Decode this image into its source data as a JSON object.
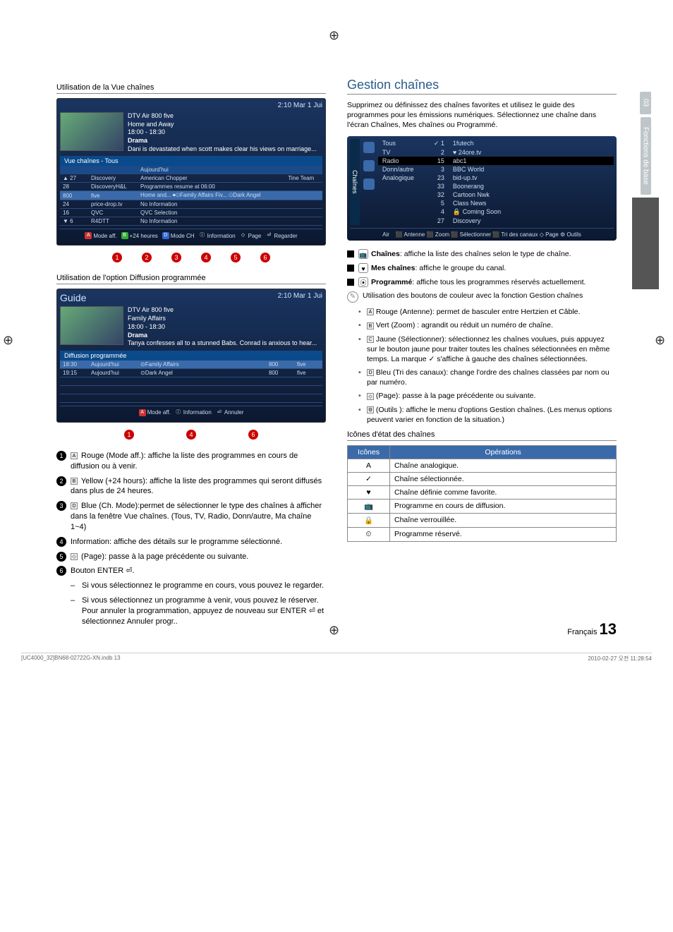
{
  "side": {
    "num": "03",
    "label": "Fonctions de base"
  },
  "left": {
    "head1": "Utilisation de la Vue chaînes",
    "tv1": {
      "time": "2:10 Mar 1 Jui",
      "prog_title": "DTV Air 800 five",
      "prog_sub": "Home and Away",
      "prog_time": "18:00 - 18:30",
      "prog_genre": "Drama",
      "prog_desc": "Dani is devastated when scott makes clear his views on marriage...",
      "tab": "Vue chaînes - Tous",
      "period": "Aujourd'hui",
      "rows": [
        {
          "n": "▲ 27",
          "ch": "Discovery",
          "p1": "American Chopper",
          "p2": "Tine Team"
        },
        {
          "n": "28",
          "ch": "DiscoveryH&L",
          "p1": "Programmes resume at 06:00",
          "p2": ""
        },
        {
          "n": "800",
          "ch": "five",
          "p1": "Home and...   ⏺⊙Family Affairs   Fiv...   ⊙Dark Angel",
          "p2": ""
        },
        {
          "n": "24",
          "ch": "price-drop.tv",
          "p1": "No Information",
          "p2": ""
        },
        {
          "n": "16",
          "ch": "QVC",
          "p1": "QVC Selection",
          "p2": ""
        },
        {
          "n": "▼ 6",
          "ch": "R4DTT",
          "p1": "No Information",
          "p2": ""
        }
      ],
      "legend": [
        "Mode aff.",
        "+24 heures",
        "Mode CH",
        "Information",
        "Page",
        "Regarder"
      ]
    },
    "head2": "Utilisation de l'option Diffusion programmée",
    "tv2": {
      "title": "Guide",
      "time": "2:10 Mar 1 Jui",
      "prog_title": "DTV Air 800 five",
      "prog_sub": "Family Affairs",
      "prog_time": "18:00 - 18:30",
      "prog_genre": "Drama",
      "prog_desc": "Tanya confesses all to a stunned Babs. Conrad is anxious to hear...",
      "tab": "Diffusion programmée",
      "rows": [
        {
          "t": "18:30",
          "d": "Aujourd'hui",
          "p": "⊙Family Affairs",
          "n": "800",
          "c": "five"
        },
        {
          "t": "19:15",
          "d": "Aujourd'hui",
          "p": "⊙Dark Angel",
          "n": "800",
          "c": "five"
        }
      ],
      "legend": [
        "Mode aff.",
        "Information",
        "Annuler"
      ]
    },
    "items": [
      {
        "n": "1",
        "badge": "A",
        "bc": "br",
        "text": "Rouge (Mode aff.): affiche la liste des programmes en cours de diffusion ou à venir."
      },
      {
        "n": "2",
        "badge": "B",
        "bc": "bg",
        "text": "Yellow (+24 hours): affiche la liste des programmes qui seront diffusés dans plus de 24 heures."
      },
      {
        "n": "3",
        "badge": "D",
        "bc": "bb",
        "text": "Blue (Ch. Mode):permet de sélectionner le type des chaînes à afficher dans la fenêtre Vue chaînes. (Tous, TV, Radio, Donn/autre, Ma chaîne 1~4)"
      },
      {
        "n": "4",
        "badge": "",
        "bc": "",
        "text": "Information: affiche des détails sur le programme sélectionné."
      },
      {
        "n": "5",
        "badge": "◇",
        "bc": "",
        "text": "(Page): passe à la page précédente ou suivante."
      },
      {
        "n": "6",
        "badge": "",
        "bc": "",
        "text": "Bouton ENTER ⏎."
      }
    ],
    "subitems": [
      "Si vous sélectionnez le programme en cours, vous pouvez le regarder.",
      "Si vous sélectionnez un programme à venir, vous pouvez le réserver. Pour annuler la programmation, appuyez de nouveau sur ENTER ⏎ et sélectionnez Annuler progr.."
    ]
  },
  "right": {
    "head": "Gestion chaînes",
    "intro": "Supprimez ou définissez des chaînes favorites et utilisez le guide des programmes pour les émissions numériques. Sélectionnez une chaîne dans l'écran Chaînes, Mes chaînes ou Programmé.",
    "chbox": {
      "sidelabel": "Chaînes",
      "col1": [
        "Tous",
        "TV",
        "Radio",
        "Donn/autre",
        "Analogique"
      ],
      "num": [
        "✓ 1",
        "2",
        "15",
        "3",
        "23",
        "33",
        "32",
        "5",
        "4",
        "27"
      ],
      "name": [
        "1futech",
        "♥ 24ore.tv",
        "abc1",
        "BBC World",
        "bid-up.tv",
        "Boonerang",
        "Cartoon Nwk",
        "Class News",
        "🔒 Coming Soon",
        "Discovery"
      ],
      "foot_left": "Air",
      "foot": "⬛ Antenne  ⬛ Zoom  ⬛ Sélectionner  ⬛ Tri des canaux  ◇ Page  ⚙ Outils"
    },
    "bullets": [
      {
        "icon": "📺",
        "text": "Chaînes: affiche la liste des chaînes selon le type de chaîne."
      },
      {
        "icon": "♥",
        "text": "Mes chaînes: affiche le groupe du canal."
      },
      {
        "icon": "⦿",
        "text": "Programmé: affiche tous les programmes réservés actuellement."
      }
    ],
    "note": "Utilisation des boutons de couleur avec la fonction Gestion chaînes",
    "dots": [
      {
        "b": "A",
        "bc": "br",
        "text": "Rouge (Antenne): permet de basculer entre Hertzien et Câble."
      },
      {
        "b": "B",
        "bc": "bg",
        "text": "Vert (Zoom) : agrandit ou réduit un numéro de chaîne."
      },
      {
        "b": "C",
        "bc": "by",
        "text": "Jaune (Sélectionner): sélectionnez les chaînes voulues, puis appuyez sur le bouton jaune pour traiter toutes les chaînes sélectionnées en même temps. La marque ✓ s'affiche à gauche des chaînes sélectionnées."
      },
      {
        "b": "D",
        "bc": "bb",
        "text": "Bleu (Tri des canaux): change l'ordre des chaînes classées par nom ou par numéro."
      },
      {
        "b": "◇",
        "bc": "",
        "text": "(Page): passe à la page précédente ou suivante."
      },
      {
        "b": "⚙",
        "bc": "",
        "text": "(Outils ): affiche le menu d'options Gestion chaînes. (Les menus options peuvent varier en fonction de la situation.)"
      }
    ],
    "iconhead": "Icônes d'état des chaînes",
    "table": {
      "h1": "Icônes",
      "h2": "Opérations",
      "rows": [
        {
          "i": "A",
          "t": "Chaîne analogique."
        },
        {
          "i": "✓",
          "t": "Chaîne sélectionnée."
        },
        {
          "i": "♥",
          "t": "Chaîne définie comme favorite."
        },
        {
          "i": "📺",
          "t": "Programme en cours de diffusion."
        },
        {
          "i": "🔒",
          "t": "Chaîne verrouillée."
        },
        {
          "i": "⏲",
          "t": "Programme réservé."
        }
      ]
    }
  },
  "footer": {
    "lang": "Français",
    "page": "13"
  },
  "print": {
    "left": "[UC4000_32]BN68-02722G-XN.indb   13",
    "right": "2010-02-27   오전 11:28:54"
  }
}
